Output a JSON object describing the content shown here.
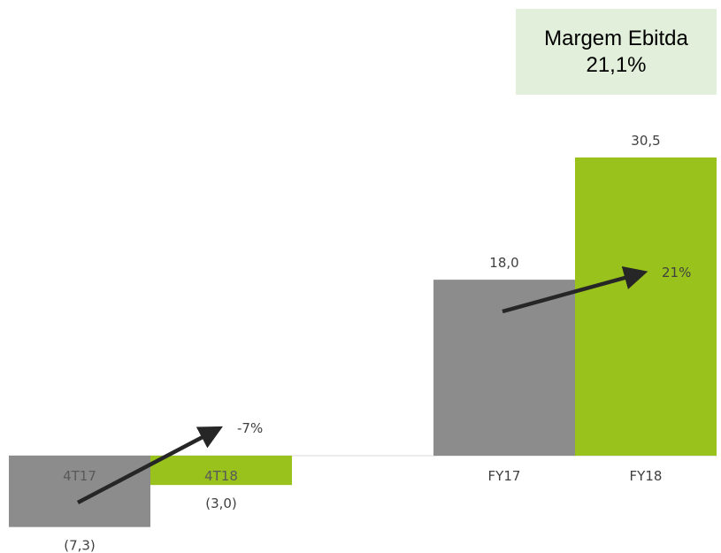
{
  "callout": {
    "title": "Margem Ebitda",
    "value": "21,1%"
  },
  "colors": {
    "gray": "#8c8c8c",
    "green": "#99c31c",
    "arrow": "#262626",
    "callout_bg": "#e2efda"
  },
  "chart_data": {
    "type": "bar",
    "groups": [
      {
        "bars": [
          {
            "category": "4T17",
            "value": -7.3,
            "label": "(7,3)",
            "color": "gray"
          },
          {
            "category": "4T18",
            "value": -3.0,
            "label": "(3,0)",
            "color": "green"
          }
        ],
        "growth_label": "-7%"
      },
      {
        "bars": [
          {
            "category": "FY17",
            "value": 18.0,
            "label": "18,0",
            "color": "gray"
          },
          {
            "category": "FY18",
            "value": 30.5,
            "label": "30,5",
            "color": "green"
          }
        ],
        "growth_label": "21%"
      }
    ],
    "grid": false,
    "legend": "none"
  }
}
